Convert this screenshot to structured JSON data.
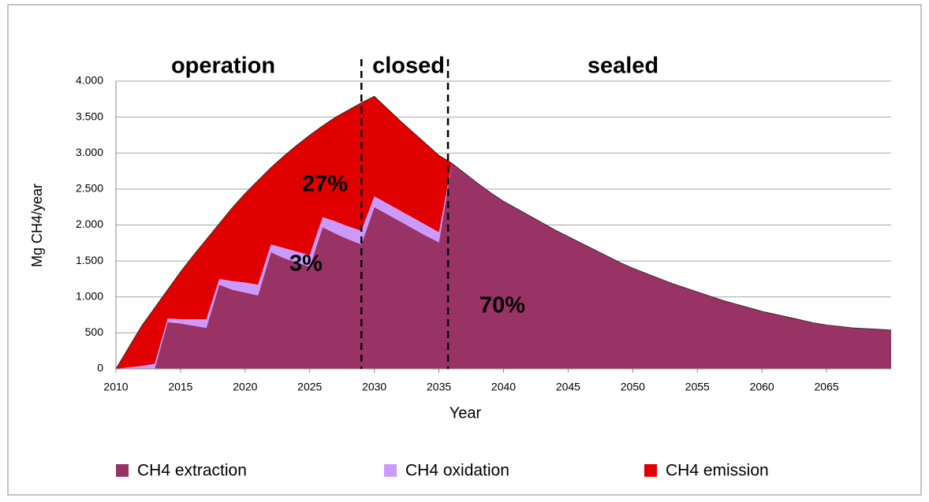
{
  "chart_data": {
    "type": "stacked_area",
    "x": [
      2010,
      2011,
      2012,
      2013,
      2014,
      2015,
      2016,
      2017,
      2018,
      2019,
      2020,
      2021,
      2022,
      2023,
      2024,
      2025,
      2026,
      2027,
      2028,
      2029,
      2030,
      2031,
      2032,
      2033,
      2034,
      2035,
      2036,
      2037,
      2038,
      2039,
      2040,
      2041,
      2042,
      2043,
      2044,
      2045,
      2046,
      2047,
      2048,
      2049,
      2050,
      2051,
      2052,
      2053,
      2054,
      2055,
      2056,
      2057,
      2058,
      2059,
      2060,
      2061,
      2062,
      2063,
      2064,
      2065,
      2066,
      2067,
      2068,
      2069,
      2070
    ],
    "series": [
      {
        "name": "CH4 extraction",
        "color": "#993366",
        "values": [
          0,
          0,
          0,
          0,
          650,
          630,
          600,
          570,
          1170,
          1100,
          1060,
          1020,
          1620,
          1540,
          1480,
          1420,
          1970,
          1880,
          1800,
          1730,
          2250,
          2150,
          2050,
          1950,
          1850,
          1760,
          2860,
          2720,
          2580,
          2450,
          2330,
          2230,
          2130,
          2030,
          1930,
          1840,
          1750,
          1660,
          1570,
          1480,
          1400,
          1330,
          1260,
          1190,
          1130,
          1070,
          1010,
          950,
          900,
          850,
          800,
          760,
          720,
          680,
          640,
          610,
          590,
          570,
          560,
          550,
          540
        ]
      },
      {
        "name": "CH4 oxidation",
        "color": "#cc99ff",
        "values": [
          0,
          20,
          40,
          70,
          50,
          60,
          90,
          120,
          80,
          120,
          140,
          150,
          110,
          140,
          150,
          160,
          140,
          170,
          180,
          190,
          150,
          150,
          150,
          150,
          150,
          140,
          0,
          0,
          0,
          0,
          0,
          0,
          0,
          0,
          0,
          0,
          0,
          0,
          0,
          0,
          0,
          0,
          0,
          0,
          0,
          0,
          0,
          0,
          0,
          0,
          0,
          0,
          0,
          0,
          0,
          0,
          0,
          0,
          0,
          0,
          0
        ]
      },
      {
        "name": "CH4 emission",
        "color": "#e00000",
        "values": [
          0,
          280,
          560,
          780,
          400,
          660,
          890,
          1110,
          770,
          1020,
          1240,
          1450,
          1070,
          1280,
          1480,
          1670,
          1270,
          1450,
          1620,
          1780,
          1390,
          1320,
          1250,
          1190,
          1130,
          1070,
          0,
          0,
          0,
          0,
          0,
          0,
          0,
          0,
          0,
          0,
          0,
          0,
          0,
          0,
          0,
          0,
          0,
          0,
          0,
          0,
          0,
          0,
          0,
          0,
          0,
          0,
          0,
          0,
          0,
          0,
          0,
          0,
          0,
          0,
          0
        ]
      }
    ],
    "xlabel": "Year",
    "ylabel": "Mg CH4/year",
    "xlim": [
      2010,
      2070
    ],
    "xticks": [
      2010,
      2015,
      2020,
      2025,
      2030,
      2035,
      2040,
      2045,
      2050,
      2055,
      2060,
      2065
    ],
    "ylim": [
      0,
      4000
    ],
    "yticks": [
      0,
      500,
      {
        "value": 1000,
        "label": "1.000"
      },
      {
        "value": 1500,
        "label": "1.500"
      },
      {
        "value": 2000,
        "label": "2.000"
      },
      {
        "value": 2500,
        "label": "2.500"
      },
      {
        "value": 3000,
        "label": "3.000"
      },
      {
        "value": 3500,
        "label": "3.500"
      },
      {
        "value": 4000,
        "label": "4.000"
      }
    ],
    "grid": true,
    "phase_lines": [
      2029,
      2035.7
    ],
    "annotations": [
      "operation",
      "closed",
      "sealed",
      "27%",
      "3%",
      "70%"
    ],
    "legend": "bottom"
  }
}
